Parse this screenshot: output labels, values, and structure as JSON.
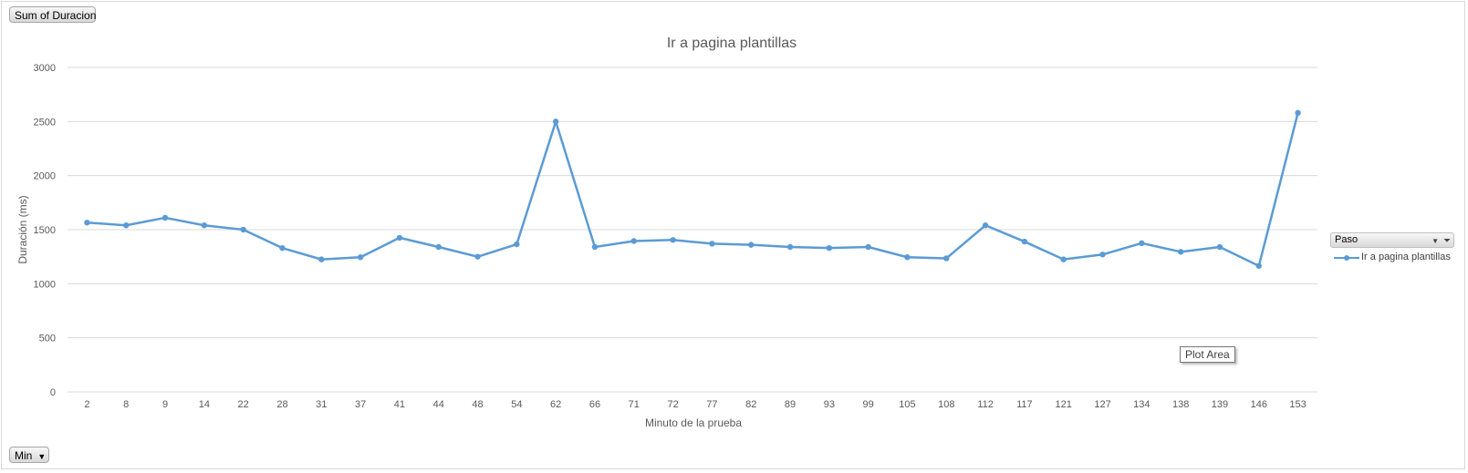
{
  "controls": {
    "value_field": "Sum of Duracion",
    "axis_field": "Min",
    "legend_field": "Paso"
  },
  "tooltip": "Plot Area",
  "colors": {
    "series": "#5b9bd5",
    "grid": "#d9d9d9",
    "text": "#595959"
  },
  "chart_data": {
    "type": "line",
    "title": "Ir a pagina plantillas",
    "xlabel": "Minuto de la prueba",
    "ylabel": "Duración (ms)",
    "ylim": [
      0,
      3000
    ],
    "yticks": [
      0,
      500,
      1000,
      1500,
      2000,
      2500,
      3000
    ],
    "grid": true,
    "legend_position": "right",
    "categories": [
      "2",
      "8",
      "9",
      "14",
      "22",
      "28",
      "31",
      "37",
      "41",
      "44",
      "48",
      "54",
      "62",
      "66",
      "71",
      "72",
      "77",
      "82",
      "89",
      "93",
      "99",
      "105",
      "108",
      "112",
      "117",
      "121",
      "127",
      "134",
      "138",
      "139",
      "146",
      "153"
    ],
    "series": [
      {
        "name": "Ir a pagina plantillas",
        "values": [
          1565,
          1540,
          1610,
          1540,
          1500,
          1330,
          1225,
          1245,
          1425,
          1340,
          1250,
          1365,
          2500,
          1340,
          1395,
          1405,
          1370,
          1360,
          1340,
          1330,
          1340,
          1245,
          1235,
          1540,
          1390,
          1225,
          1270,
          1375,
          1295,
          1340,
          1165,
          2580
        ]
      }
    ]
  }
}
